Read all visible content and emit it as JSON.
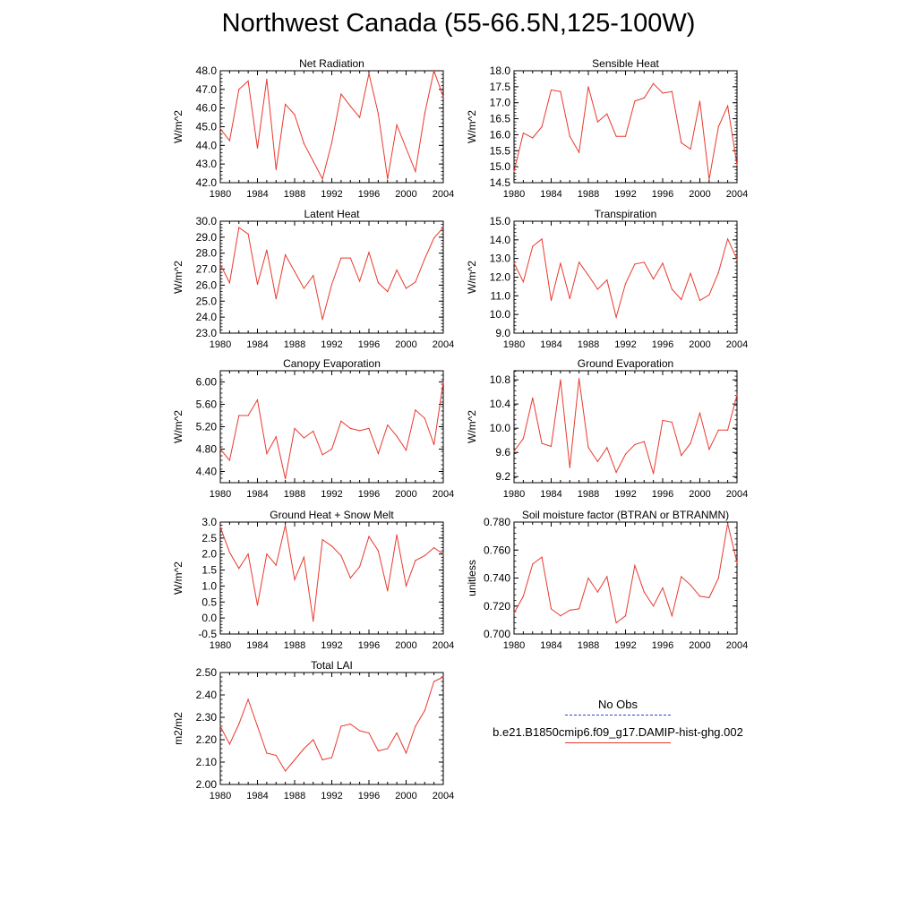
{
  "title": "Northwest Canada (55-66.5N,125-100W)",
  "colors": {
    "model": "#e8392e",
    "obs": "#2a3fd6",
    "axis": "#000000"
  },
  "legend": {
    "obs_label": "No Obs",
    "model_label": "b.e21.B1850cmip6.f09_g17.DAMIP-hist-ghg.002"
  },
  "chart_data": [
    {
      "type": "line",
      "title": "Net Radiation",
      "ylabel": "W/m^2",
      "xlim": [
        1980,
        2004
      ],
      "ylim": [
        42.0,
        48.0
      ],
      "xticks": [
        "1980",
        "1984",
        "1988",
        "1992",
        "1996",
        "2000",
        "2004"
      ],
      "yticks": [
        "42.0",
        "43.0",
        "44.0",
        "45.0",
        "46.0",
        "47.0",
        "48.0"
      ],
      "x": [
        1980,
        1981,
        1982,
        1983,
        1984,
        1985,
        1986,
        1987,
        1988,
        1989,
        1990,
        1991,
        1992,
        1993,
        1994,
        1995,
        1996,
        1997,
        1998,
        1999,
        2000,
        2001,
        2002,
        2003,
        2004
      ],
      "series": [
        {
          "values": [
            44.9,
            44.25,
            47.0,
            47.45,
            43.85,
            47.55,
            42.7,
            46.2,
            45.65,
            44.1,
            43.15,
            42.2,
            44.15,
            46.75,
            46.1,
            45.5,
            47.85,
            45.7,
            42.2,
            45.1,
            43.85,
            42.6,
            45.7,
            48.0,
            46.6
          ]
        }
      ]
    },
    {
      "type": "line",
      "title": "Sensible Heat",
      "ylabel": "W/m^2",
      "xlim": [
        1980,
        2004
      ],
      "ylim": [
        14.5,
        18.0
      ],
      "xticks": [
        "1980",
        "1984",
        "1988",
        "1992",
        "1996",
        "2000",
        "2004"
      ],
      "yticks": [
        "14.5",
        "15.0",
        "15.5",
        "16.0",
        "16.5",
        "17.0",
        "17.5",
        "18.0"
      ],
      "x": [
        1980,
        1981,
        1982,
        1983,
        1984,
        1985,
        1986,
        1987,
        1988,
        1989,
        1990,
        1991,
        1992,
        1993,
        1994,
        1995,
        1996,
        1997,
        1998,
        1999,
        2000,
        2001,
        2002,
        2003,
        2004
      ],
      "series": [
        {
          "values": [
            14.85,
            16.05,
            15.9,
            16.25,
            17.4,
            17.35,
            15.95,
            15.45,
            17.5,
            16.4,
            16.65,
            15.95,
            15.95,
            17.05,
            17.15,
            17.6,
            17.3,
            17.35,
            15.75,
            15.55,
            17.05,
            14.6,
            16.25,
            16.9,
            15.05
          ]
        }
      ]
    },
    {
      "type": "line",
      "title": "Latent Heat",
      "ylabel": "W/m^2",
      "xlim": [
        1980,
        2004
      ],
      "ylim": [
        23.0,
        30.0
      ],
      "xticks": [
        "1980",
        "1984",
        "1988",
        "1992",
        "1996",
        "2000",
        "2004"
      ],
      "yticks": [
        "23.0",
        "24.0",
        "25.0",
        "26.0",
        "27.0",
        "28.0",
        "29.0",
        "30.0"
      ],
      "x": [
        1980,
        1981,
        1982,
        1983,
        1984,
        1985,
        1986,
        1987,
        1988,
        1989,
        1990,
        1991,
        1992,
        1993,
        1994,
        1995,
        1996,
        1997,
        1998,
        1999,
        2000,
        2001,
        2002,
        2003,
        2004
      ],
      "series": [
        {
          "values": [
            27.3,
            26.15,
            29.6,
            29.2,
            26.05,
            28.2,
            25.15,
            27.9,
            26.85,
            25.8,
            26.6,
            23.85,
            26.05,
            27.7,
            27.7,
            26.25,
            28.05,
            26.15,
            25.6,
            26.95,
            25.8,
            26.2,
            27.65,
            28.95,
            29.6
          ]
        }
      ]
    },
    {
      "type": "line",
      "title": "Transpiration",
      "ylabel": "W/m^2",
      "xlim": [
        1980,
        2004
      ],
      "ylim": [
        9.0,
        15.0
      ],
      "xticks": [
        "1980",
        "1984",
        "1988",
        "1992",
        "1996",
        "2000",
        "2004"
      ],
      "yticks": [
        "9.0",
        "10.0",
        "11.0",
        "12.0",
        "13.0",
        "14.0",
        "15.0"
      ],
      "x": [
        1980,
        1981,
        1982,
        1983,
        1984,
        1985,
        1986,
        1987,
        1988,
        1989,
        1990,
        1991,
        1992,
        1993,
        1994,
        1995,
        1996,
        1997,
        1998,
        1999,
        2000,
        2001,
        2002,
        2003,
        2004
      ],
      "series": [
        {
          "values": [
            12.75,
            11.75,
            13.65,
            14.05,
            10.75,
            12.75,
            10.85,
            12.8,
            12.1,
            11.35,
            11.85,
            9.85,
            11.65,
            12.7,
            12.8,
            11.9,
            12.75,
            11.35,
            10.8,
            12.2,
            10.75,
            11.05,
            12.25,
            14.05,
            12.95
          ]
        }
      ]
    },
    {
      "type": "line",
      "title": "Canopy Evaporation",
      "ylabel": "W/m^2",
      "xlim": [
        1980,
        2004
      ],
      "ylim": [
        4.2,
        6.2
      ],
      "xticks": [
        "1980",
        "1984",
        "1988",
        "1992",
        "1996",
        "2000",
        "2004"
      ],
      "yticks": [
        "4.40",
        "4.80",
        "5.20",
        "5.60",
        "6.00"
      ],
      "ytick_values": [
        4.4,
        4.8,
        5.2,
        5.6,
        6.0
      ],
      "x": [
        1980,
        1981,
        1982,
        1983,
        1984,
        1985,
        1986,
        1987,
        1988,
        1989,
        1990,
        1991,
        1992,
        1993,
        1994,
        1995,
        1996,
        1997,
        1998,
        1999,
        2000,
        2001,
        2002,
        2003,
        2004
      ],
      "series": [
        {
          "values": [
            4.8,
            4.6,
            5.4,
            5.4,
            5.68,
            4.72,
            5.02,
            4.27,
            5.17,
            5.0,
            5.12,
            4.7,
            4.8,
            5.3,
            5.17,
            5.13,
            5.17,
            4.72,
            5.23,
            5.03,
            4.78,
            5.5,
            5.35,
            4.88,
            6.0
          ]
        }
      ]
    },
    {
      "type": "line",
      "title": "Ground Evaporation",
      "ylabel": "W/m^2",
      "xlim": [
        1980,
        2004
      ],
      "ylim": [
        9.1,
        10.95
      ],
      "xticks": [
        "1980",
        "1984",
        "1988",
        "1992",
        "1996",
        "2000",
        "2004"
      ],
      "yticks": [
        "9.2",
        "9.6",
        "10.0",
        "10.4",
        "10.8"
      ],
      "ytick_values": [
        9.2,
        9.6,
        10.0,
        10.4,
        10.8
      ],
      "x": [
        1980,
        1981,
        1982,
        1983,
        1984,
        1985,
        1986,
        1987,
        1988,
        1989,
        1990,
        1991,
        1992,
        1993,
        1994,
        1995,
        1996,
        1997,
        1998,
        1999,
        2000,
        2001,
        2002,
        2003,
        2004
      ],
      "series": [
        {
          "values": [
            9.62,
            9.83,
            10.5,
            9.75,
            9.7,
            10.8,
            9.35,
            10.82,
            9.68,
            9.45,
            9.68,
            9.27,
            9.57,
            9.73,
            9.78,
            9.25,
            10.13,
            10.1,
            9.55,
            9.75,
            10.25,
            9.65,
            9.97,
            9.97,
            10.55
          ]
        }
      ]
    },
    {
      "type": "line",
      "title": "Ground Heat + Snow Melt",
      "ylabel": "W/m^2",
      "xlim": [
        1980,
        2004
      ],
      "ylim": [
        -0.5,
        3.0
      ],
      "xticks": [
        "1980",
        "1984",
        "1988",
        "1992",
        "1996",
        "2000",
        "2004"
      ],
      "yticks": [
        "-0.5",
        "0.0",
        "0.5",
        "1.0",
        "1.5",
        "2.0",
        "2.5",
        "3.0"
      ],
      "x": [
        1980,
        1981,
        1982,
        1983,
        1984,
        1985,
        1986,
        1987,
        1988,
        1989,
        1990,
        1991,
        1992,
        1993,
        1994,
        1995,
        1996,
        1997,
        1998,
        1999,
        2000,
        2001,
        2002,
        2003,
        2004
      ],
      "series": [
        {
          "values": [
            2.85,
            2.05,
            1.55,
            2.0,
            0.4,
            2.0,
            1.65,
            2.9,
            1.2,
            1.9,
            -0.1,
            2.45,
            2.25,
            1.95,
            1.25,
            1.6,
            2.55,
            2.1,
            0.85,
            2.6,
            1.0,
            1.8,
            1.95,
            2.2,
            2.0
          ]
        }
      ]
    },
    {
      "type": "line",
      "title": "Soil moisture factor (BTRAN or BTRANMN)",
      "ylabel": "unitless",
      "xlim": [
        1980,
        2004
      ],
      "ylim": [
        0.7,
        0.78
      ],
      "xticks": [
        "1980",
        "1984",
        "1988",
        "1992",
        "1996",
        "2000",
        "2004"
      ],
      "yticks": [
        "0.700",
        "0.720",
        "0.740",
        "0.760",
        "0.780"
      ],
      "ytick_values": [
        0.7,
        0.72,
        0.74,
        0.76,
        0.78
      ],
      "x": [
        1980,
        1981,
        1982,
        1983,
        1984,
        1985,
        1986,
        1987,
        1988,
        1989,
        1990,
        1991,
        1992,
        1993,
        1994,
        1995,
        1996,
        1997,
        1998,
        1999,
        2000,
        2001,
        2002,
        2003,
        2004
      ],
      "series": [
        {
          "values": [
            0.715,
            0.727,
            0.75,
            0.755,
            0.718,
            0.713,
            0.717,
            0.718,
            0.74,
            0.73,
            0.741,
            0.708,
            0.713,
            0.749,
            0.73,
            0.72,
            0.733,
            0.713,
            0.741,
            0.735,
            0.727,
            0.726,
            0.74,
            0.779,
            0.751
          ]
        }
      ]
    },
    {
      "type": "line",
      "title": "Total LAI",
      "ylabel": "m2/m2",
      "xlim": [
        1980,
        2004
      ],
      "ylim": [
        2.0,
        2.5
      ],
      "xticks": [
        "1980",
        "1984",
        "1988",
        "1992",
        "1996",
        "2000",
        "2004"
      ],
      "yticks": [
        "2.00",
        "2.10",
        "2.20",
        "2.30",
        "2.40",
        "2.50"
      ],
      "ytick_values": [
        2.0,
        2.1,
        2.2,
        2.3,
        2.4,
        2.5
      ],
      "x": [
        1980,
        1981,
        1982,
        1983,
        1984,
        1985,
        1986,
        1987,
        1988,
        1989,
        1990,
        1991,
        1992,
        1993,
        1994,
        1995,
        1996,
        1997,
        1998,
        1999,
        2000,
        2001,
        2002,
        2003,
        2004
      ],
      "series": [
        {
          "values": [
            2.26,
            2.18,
            2.27,
            2.38,
            2.26,
            2.14,
            2.13,
            2.06,
            2.11,
            2.16,
            2.2,
            2.11,
            2.12,
            2.26,
            2.27,
            2.24,
            2.23,
            2.15,
            2.16,
            2.23,
            2.14,
            2.26,
            2.33,
            2.46,
            2.48
          ]
        }
      ]
    }
  ]
}
